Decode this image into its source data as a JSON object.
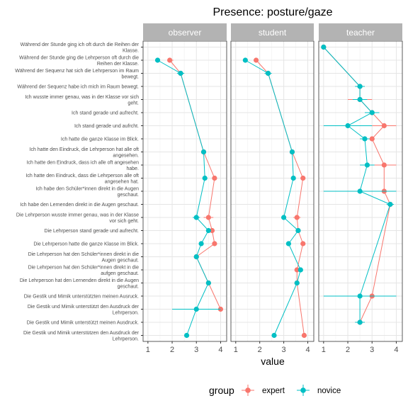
{
  "chart_data": {
    "type": "line",
    "title": "Presence: posture/gaze",
    "xlabel": "value",
    "ylabel": "",
    "xlim": [
      0.8,
      4.25
    ],
    "x_ticks": [
      1,
      2,
      3,
      4
    ],
    "grid": true,
    "legend": {
      "title": "group",
      "placement": "bottom",
      "entries": [
        "expert",
        "novice"
      ]
    },
    "colors": {
      "expert": "#F8766D",
      "novice": "#00BFC4",
      "strip_bg": "#b3b3b3",
      "strip_text": "#ffffff",
      "grid": "#e5e5e5",
      "panel_border": "#333333"
    },
    "facets": [
      "observer",
      "student",
      "teacher"
    ],
    "items": [
      "Während der Stunde ging ich oft durch die Reihen der Klasse.",
      "Während der Stunde ging die Lehrperson oft durch die Reihen der Klasse.",
      "Während der Sequenz hat sich die Lehrperson im Raum bewegt.",
      "Während der Sequenz habe ich mich im Raum bewegt.",
      "Ich wusste immer genau, was in der Klasse vor sich geht.",
      "Ich stand gerade und aufrecht.",
      "Ich stand gerade und aufrcht.",
      "Ich hatte die ganze Klasse im Blick.",
      "Ich hatte den Eindruck, die Lehrperson hat alle oft angesehen.",
      "Ich hatte den Eindruck, dass ich alle oft angesehen habe.",
      "Ich hatte den Eindruck, dass die Lehrperson alle oft angesehen hat.",
      "Ich habe den Schüler*innen direkt in die Augen geschaut.",
      "Ich habe den Lernenden direkt in die Augen geschaut.",
      "Die Lehrperson wusste immer genau, was in der Klasse vor sich geht.",
      "Die Lehrperson stand gerade und aufrecht.",
      "Die Lehrperson hatte die ganze Klasse im Blick.",
      "Die Lehrperson hat den Schüler*innen direkt in die Augen geschaut.",
      "Die Lehrperson hat den Schüler*innen direkt in die aufgen geschaut.",
      "Die Lehrperson hat den Lernenden direkt in die Augen geschaut.",
      "Die Gestik und Mimik unterstützten meinen Ausruck.",
      "Die Gestik und Mimik unterstützt den Ausdruck der Lehrperson.",
      "Die Gestik und Mimik unterstützt meinen Ausdruck.",
      "Die Gestik und Mimik unterstützen den Ausdruck der Lehrperson."
    ],
    "series": {
      "observer": {
        "expert": [
          {
            "item": 1,
            "x": 1.9,
            "lo": 1.8,
            "hi": 2.05
          },
          {
            "item": 2,
            "x": 2.35,
            "lo": 2.25,
            "hi": 2.45
          },
          {
            "item": 8,
            "x": 3.3,
            "lo": 3.25,
            "hi": 3.35
          },
          {
            "item": 10,
            "x": 3.75,
            "lo": 3.65,
            "hi": 3.85
          },
          {
            "item": 13,
            "x": 3.5,
            "lo": 3.3,
            "hi": 3.7
          },
          {
            "item": 14,
            "x": 3.65,
            "lo": 3.55,
            "hi": 3.75
          },
          {
            "item": 15,
            "x": 3.75,
            "lo": 3.65,
            "hi": 3.85
          },
          {
            "item": 16,
            "x": 3.0,
            "lo": 2.95,
            "hi": 3.05
          },
          {
            "item": 18,
            "x": 3.5,
            "lo": 3.45,
            "hi": 3.55
          },
          {
            "item": 20,
            "x": 4.0,
            "lo": 3.95,
            "hi": 4.05
          }
        ],
        "novice": [
          {
            "item": 1,
            "x": 1.4,
            "lo": 1.3,
            "hi": 1.5
          },
          {
            "item": 2,
            "x": 2.35,
            "lo": 2.2,
            "hi": 2.5
          },
          {
            "item": 8,
            "x": 3.3,
            "lo": 3.2,
            "hi": 3.4
          },
          {
            "item": 10,
            "x": 3.35,
            "lo": 3.25,
            "hi": 3.45
          },
          {
            "item": 13,
            "x": 3.0,
            "lo": 2.85,
            "hi": 3.15
          },
          {
            "item": 14,
            "x": 3.5,
            "lo": 3.4,
            "hi": 3.6
          },
          {
            "item": 15,
            "x": 3.2,
            "lo": 3.1,
            "hi": 3.3
          },
          {
            "item": 16,
            "x": 3.0,
            "lo": 2.9,
            "hi": 3.1
          },
          {
            "item": 18,
            "x": 3.5,
            "lo": 3.45,
            "hi": 3.55
          },
          {
            "item": 20,
            "x": 3.0,
            "lo": 2.0,
            "hi": 4.0
          },
          {
            "item": 22,
            "x": 2.6,
            "lo": 2.5,
            "hi": 2.7
          }
        ]
      },
      "student": {
        "expert": [
          {
            "item": 1,
            "x": 1.85,
            "lo": 1.75,
            "hi": 1.95
          },
          {
            "item": 2,
            "x": 2.35,
            "lo": 2.25,
            "hi": 2.45
          },
          {
            "item": 8,
            "x": 3.35,
            "lo": 3.3,
            "hi": 3.4
          },
          {
            "item": 10,
            "x": 3.8,
            "lo": 3.7,
            "hi": 3.9
          },
          {
            "item": 13,
            "x": 3.55,
            "lo": 3.4,
            "hi": 3.7
          },
          {
            "item": 14,
            "x": 3.6,
            "lo": 3.5,
            "hi": 3.7
          },
          {
            "item": 15,
            "x": 3.8,
            "lo": 3.7,
            "hi": 3.9
          },
          {
            "item": 17,
            "x": 3.55,
            "lo": 3.45,
            "hi": 3.65
          },
          {
            "item": 18,
            "x": 3.55,
            "lo": 3.5,
            "hi": 3.6
          },
          {
            "item": 22,
            "x": 3.85,
            "lo": 3.8,
            "hi": 3.9
          }
        ],
        "novice": [
          {
            "item": 1,
            "x": 1.4,
            "lo": 1.3,
            "hi": 1.5
          },
          {
            "item": 2,
            "x": 2.35,
            "lo": 2.2,
            "hi": 2.5
          },
          {
            "item": 8,
            "x": 3.35,
            "lo": 3.25,
            "hi": 3.45
          },
          {
            "item": 10,
            "x": 3.4,
            "lo": 3.3,
            "hi": 3.5
          },
          {
            "item": 13,
            "x": 3.0,
            "lo": 2.9,
            "hi": 3.1
          },
          {
            "item": 14,
            "x": 3.6,
            "lo": 3.5,
            "hi": 3.7
          },
          {
            "item": 15,
            "x": 3.2,
            "lo": 3.1,
            "hi": 3.3
          },
          {
            "item": 17,
            "x": 3.7,
            "lo": 3.6,
            "hi": 3.8
          },
          {
            "item": 18,
            "x": 3.55,
            "lo": 3.45,
            "hi": 3.65
          },
          {
            "item": 22,
            "x": 2.6,
            "lo": 2.5,
            "hi": 2.7
          }
        ]
      },
      "teacher": {
        "expert": [
          {
            "item": 0,
            "x": 1.0,
            "lo": 1.0,
            "hi": 1.0
          },
          {
            "item": 3,
            "x": 2.5,
            "lo": 2.3,
            "hi": 2.7
          },
          {
            "item": 4,
            "x": 2.5,
            "lo": 2.0,
            "hi": 3.0
          },
          {
            "item": 5,
            "x": 3.0,
            "lo": 2.8,
            "hi": 3.2
          },
          {
            "item": 6,
            "x": 3.5,
            "lo": 3.0,
            "hi": 4.0
          },
          {
            "item": 7,
            "x": 3.0,
            "lo": 2.9,
            "hi": 3.1
          },
          {
            "item": 9,
            "x": 3.5,
            "lo": 3.0,
            "hi": 4.0
          },
          {
            "item": 11,
            "x": 3.5,
            "lo": 3.0,
            "hi": 4.0
          },
          {
            "item": 12,
            "x": 3.75,
            "lo": 3.7,
            "hi": 3.8
          },
          {
            "item": 19,
            "x": 3.0,
            "lo": 2.0,
            "hi": 4.0
          },
          {
            "item": 21,
            "x": 2.5,
            "lo": 2.3,
            "hi": 2.7
          }
        ],
        "novice": [
          {
            "item": 0,
            "x": 1.0,
            "lo": 1.0,
            "hi": 1.0
          },
          {
            "item": 3,
            "x": 2.5,
            "lo": 2.3,
            "hi": 2.7
          },
          {
            "item": 4,
            "x": 2.5,
            "lo": 2.2,
            "hi": 2.8
          },
          {
            "item": 5,
            "x": 3.0,
            "lo": 2.7,
            "hi": 3.3
          },
          {
            "item": 6,
            "x": 2.0,
            "lo": 1.0,
            "hi": 3.0
          },
          {
            "item": 7,
            "x": 2.7,
            "lo": 2.5,
            "hi": 2.9
          },
          {
            "item": 9,
            "x": 2.8,
            "lo": 2.5,
            "hi": 3.1
          },
          {
            "item": 11,
            "x": 2.5,
            "lo": 1.0,
            "hi": 4.0
          },
          {
            "item": 12,
            "x": 3.75,
            "lo": 3.6,
            "hi": 3.9
          },
          {
            "item": 19,
            "x": 2.5,
            "lo": 1.0,
            "hi": 4.0
          },
          {
            "item": 21,
            "x": 2.5,
            "lo": 2.3,
            "hi": 2.7
          }
        ]
      }
    }
  }
}
